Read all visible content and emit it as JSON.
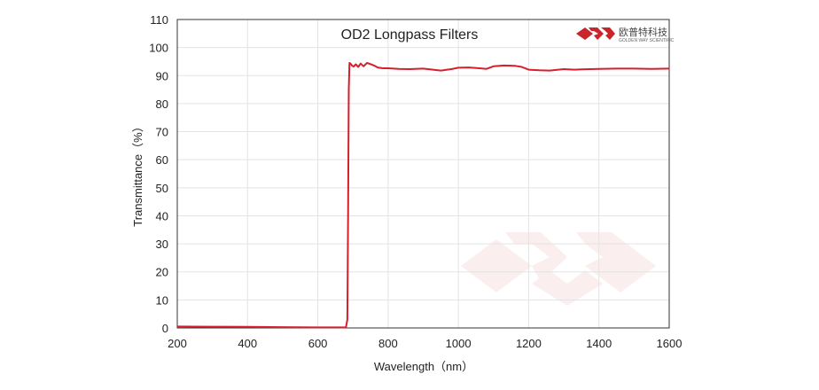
{
  "chart_data": {
    "type": "line",
    "title": "OD2  Longpass Filters",
    "xlabel": "Wavelength（nm）",
    "ylabel": "Transmittance（%）",
    "xlim": [
      200,
      1600
    ],
    "ylim": [
      0,
      110
    ],
    "xticks": [
      200,
      400,
      600,
      800,
      1000,
      1200,
      1400,
      1600
    ],
    "yticks": [
      0,
      10,
      20,
      30,
      40,
      50,
      60,
      70,
      80,
      90,
      100,
      110
    ],
    "grid": true,
    "legend": "none",
    "series": [
      {
        "color": "#d4202c",
        "x": [
          200,
          300,
          400,
          500,
          600,
          680,
          684,
          686,
          688,
          690,
          693,
          697,
          702,
          708,
          715,
          722,
          730,
          740,
          750,
          760,
          770,
          785,
          800,
          830,
          860,
          900,
          950,
          980,
          1000,
          1030,
          1060,
          1080,
          1100,
          1130,
          1160,
          1180,
          1200,
          1230,
          1260,
          1300,
          1330,
          1350,
          1400,
          1450,
          1500,
          1550,
          1600
        ],
        "y": [
          0.5,
          0.45,
          0.4,
          0.3,
          0.2,
          0.2,
          3,
          40,
          85,
          94.5,
          94.3,
          93.6,
          93.2,
          94,
          93.1,
          94.3,
          93.3,
          94.5,
          94.1,
          93.6,
          92.9,
          92.6,
          92.6,
          92.4,
          92.3,
          92.5,
          91.8,
          92.3,
          92.8,
          92.9,
          92.6,
          92.4,
          93.3,
          93.6,
          93.5,
          93.1,
          92.1,
          91.9,
          91.8,
          92.3,
          92.1,
          92.2,
          92.4,
          92.5,
          92.5,
          92.4,
          92.5
        ]
      }
    ]
  },
  "logo": {
    "brand_name": "欧普特科技",
    "brand_sub": "GOLDEN WAY SCIENTIFIC",
    "brand_color": "#c9252c"
  }
}
